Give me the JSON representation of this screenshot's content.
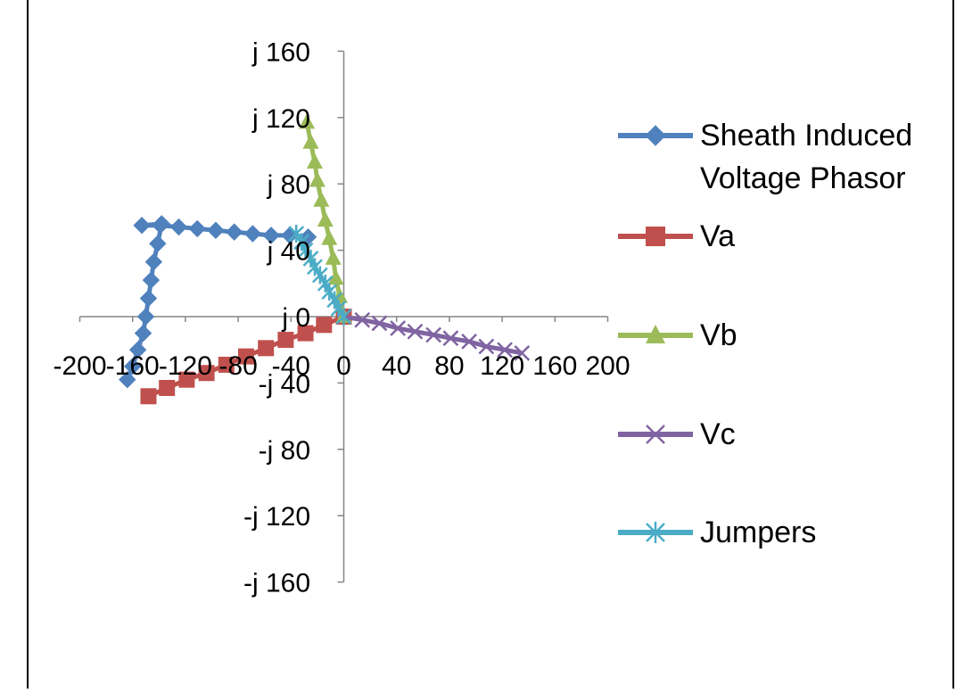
{
  "chart_data": {
    "type": "scatter",
    "title": "",
    "xlabel": "",
    "ylabel": "",
    "xlim": [
      -200,
      200
    ],
    "ylim": [
      -160,
      160
    ],
    "x_ticks": [
      -200,
      -160,
      -120,
      -80,
      -40,
      0,
      40,
      80,
      120,
      160,
      200
    ],
    "x_tick_labels": [
      "-200",
      "-160",
      "-120",
      "-80",
      "-40",
      "0",
      "40",
      "80",
      "120",
      "160",
      "200"
    ],
    "y_ticks": [
      160,
      120,
      80,
      40,
      0,
      -40,
      -80,
      -120,
      -160
    ],
    "y_tick_labels": [
      "j 160",
      "j 120",
      "j 80",
      "j 40",
      "j 0",
      "-j 40",
      "-j 80",
      "-j 120",
      "-j 160"
    ],
    "grid": false,
    "legend_position": "right",
    "series": [
      {
        "name": "Sheath Induced Voltage Phasor",
        "color": "#4F81BD",
        "marker": "diamond",
        "x": [
          -164,
          -160,
          -156,
          -152,
          -150,
          -148,
          -146,
          -144,
          -141,
          -138,
          -153,
          -139,
          -125,
          -111,
          -97,
          -83,
          -69,
          -55,
          -41,
          -27
        ],
        "y": [
          -38,
          -30,
          -20,
          -10,
          0,
          11,
          22,
          33,
          44,
          56,
          55,
          55,
          54,
          53,
          52,
          51,
          50,
          49,
          49,
          48
        ]
      },
      {
        "name": "Va",
        "color": "#C0504D",
        "marker": "square",
        "x": [
          -148,
          -134,
          -119,
          -104,
          -89,
          -74,
          -59,
          -44,
          -29,
          -15,
          0
        ],
        "y": [
          -48,
          -43,
          -38,
          -34,
          -29,
          -24,
          -19,
          -14,
          -10,
          -5,
          0
        ]
      },
      {
        "name": "Vb",
        "color": "#9BBB59",
        "marker": "triangle",
        "x": [
          0,
          -3,
          -6,
          -8,
          -11,
          -14,
          -17,
          -20,
          -22,
          -25,
          -28
        ],
        "y": [
          0,
          12,
          23,
          35,
          47,
          58,
          70,
          82,
          93,
          105,
          117
        ]
      },
      {
        "name": "Vc",
        "color": "#8064A2",
        "marker": "x",
        "x": [
          0,
          14,
          27,
          41,
          54,
          68,
          81,
          95,
          108,
          122,
          135
        ],
        "y": [
          0,
          -2,
          -4,
          -7,
          -9,
          -11,
          -13,
          -15,
          -18,
          -20,
          -22
        ]
      },
      {
        "name": "Jumpers",
        "color": "#4BACC6",
        "marker": "asterisk",
        "x": [
          0,
          -4,
          -7,
          -11,
          -14,
          -18,
          -22,
          -25,
          -29,
          -32,
          -36
        ],
        "y": [
          0,
          5,
          10,
          15,
          20,
          25,
          30,
          35,
          40,
          45,
          50
        ]
      }
    ]
  }
}
